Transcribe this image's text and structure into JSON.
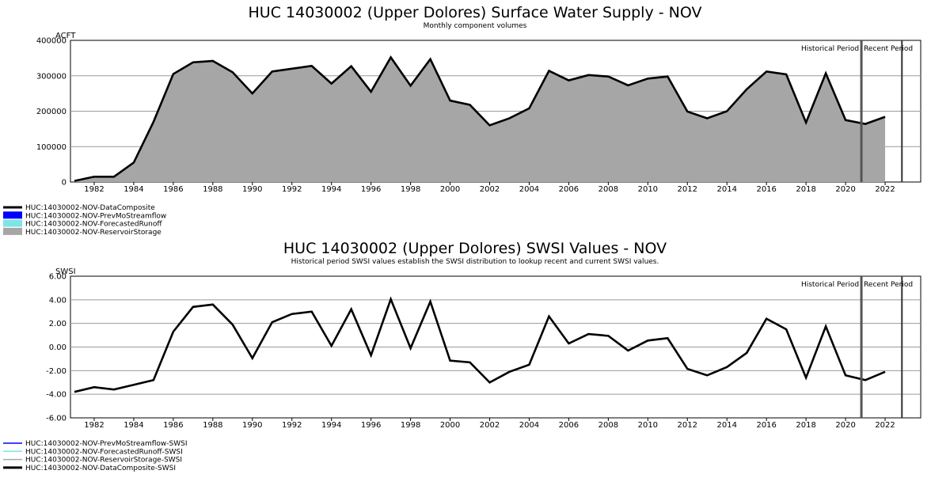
{
  "chart_data": [
    {
      "type": "area",
      "title": "HUC 14030002 (Upper Dolores) Surface Water Supply - NOV",
      "subtitle": "Monthly component volumes",
      "ylabel": "ACFT",
      "xlim": [
        1980.8,
        2023.8
      ],
      "ylim": [
        0,
        400000
      ],
      "yticks": [
        "0",
        "100000",
        "200000",
        "300000",
        "400000"
      ],
      "ytick_values": [
        0,
        100000,
        200000,
        300000,
        400000
      ],
      "xticks": [
        1982,
        1984,
        1986,
        1988,
        1990,
        1992,
        1994,
        1996,
        1998,
        2000,
        2002,
        2004,
        2006,
        2008,
        2010,
        2012,
        2014,
        2016,
        2018,
        2020,
        2022
      ],
      "grid": true,
      "x": [
        1981,
        1982,
        1983,
        1984,
        1985,
        1986,
        1987,
        1988,
        1989,
        1990,
        1991,
        1992,
        1993,
        1994,
        1995,
        1996,
        1997,
        1998,
        1999,
        2000,
        2001,
        2002,
        2003,
        2004,
        2005,
        2006,
        2007,
        2008,
        2009,
        2010,
        2011,
        2012,
        2013,
        2014,
        2015,
        2016,
        2017,
        2018,
        2019,
        2020,
        2021,
        2022
      ],
      "series": [
        {
          "name": "HUC:14030002-NOV-ReservoirStorage",
          "kind": "area",
          "color": "#a6a6a6",
          "values": [
            3000,
            15000,
            15000,
            55000,
            170000,
            305000,
            338000,
            342000,
            310000,
            250000,
            312000,
            320000,
            328000,
            278000,
            327000,
            255000,
            352000,
            272000,
            347000,
            230000,
            218000,
            160000,
            180000,
            208000,
            314000,
            287000,
            302000,
            298000,
            273000,
            292000,
            298000,
            199000,
            180000,
            200000,
            262000,
            312000,
            304000,
            168000,
            307000,
            175000,
            164000,
            184000
          ]
        },
        {
          "name": "HUC:14030002-NOV-DataComposite",
          "kind": "line",
          "color": "#000000",
          "values": [
            3000,
            15000,
            15000,
            55000,
            170000,
            305000,
            338000,
            342000,
            310000,
            250000,
            312000,
            320000,
            328000,
            278000,
            327000,
            255000,
            352000,
            272000,
            347000,
            230000,
            218000,
            160000,
            180000,
            208000,
            314000,
            287000,
            302000,
            298000,
            273000,
            292000,
            298000,
            199000,
            180000,
            200000,
            262000,
            312000,
            304000,
            168000,
            307000,
            175000,
            164000,
            184000
          ]
        }
      ],
      "period_lines": [
        2020.8,
        2022.85
      ],
      "period_labels": [
        "Historical Period",
        "Recent Period"
      ],
      "legend": [
        {
          "label": "HUC:14030002-NOV-DataComposite",
          "color": "#000000",
          "kind": "line"
        },
        {
          "label": "HUC:14030002-NOV-PrevMoStreamflow",
          "color": "#0000ff",
          "kind": "box"
        },
        {
          "label": "HUC:14030002-NOV-ForecastedRunoff",
          "color": "#7fe4e4",
          "kind": "box"
        },
        {
          "label": "HUC:14030002-NOV-ReservoirStorage",
          "color": "#a6a6a6",
          "kind": "box"
        }
      ]
    },
    {
      "type": "line",
      "title": "HUC 14030002 (Upper Dolores) SWSI Values - NOV",
      "subtitle": "Historical period SWSI values establish the SWSI distribution to lookup recent and current SWSI values.",
      "ylabel": "SWSI",
      "xlim": [
        1980.8,
        2023.8
      ],
      "ylim": [
        -6,
        6
      ],
      "yticks": [
        "-6.00",
        "-4.00",
        "-2.00",
        "0.00",
        "2.00",
        "4.00",
        "6.00"
      ],
      "ytick_values": [
        -6,
        -4,
        -2,
        0,
        2,
        4,
        6
      ],
      "xticks": [
        1982,
        1984,
        1986,
        1988,
        1990,
        1992,
        1994,
        1996,
        1998,
        2000,
        2002,
        2004,
        2006,
        2008,
        2010,
        2012,
        2014,
        2016,
        2018,
        2020,
        2022
      ],
      "grid": true,
      "x": [
        1981,
        1982,
        1983,
        1984,
        1985,
        1986,
        1987,
        1988,
        1989,
        1990,
        1991,
        1992,
        1993,
        1994,
        1995,
        1996,
        1997,
        1998,
        1999,
        2000,
        2001,
        2002,
        2003,
        2004,
        2005,
        2006,
        2007,
        2008,
        2009,
        2010,
        2011,
        2012,
        2013,
        2014,
        2015,
        2016,
        2017,
        2018,
        2019,
        2020,
        2021,
        2022
      ],
      "series": [
        {
          "name": "HUC:14030002-NOV-DataComposite-SWSI",
          "kind": "line",
          "color": "#000000",
          "values": [
            -3.8,
            -3.4,
            -3.6,
            -3.2,
            -2.8,
            1.3,
            3.4,
            3.6,
            1.9,
            -0.95,
            2.1,
            2.8,
            3.0,
            0.1,
            3.2,
            -0.7,
            4.05,
            -0.1,
            3.85,
            -1.15,
            -1.3,
            -3.0,
            -2.1,
            -1.5,
            2.6,
            0.3,
            1.1,
            0.95,
            -0.3,
            0.55,
            0.75,
            -1.85,
            -2.4,
            -1.7,
            -0.5,
            2.4,
            1.5,
            -2.6,
            1.75,
            -2.4,
            -2.8,
            -2.1
          ]
        }
      ],
      "period_lines": [
        2020.8,
        2022.85
      ],
      "period_labels": [
        "Historical Period",
        "Recent Period"
      ],
      "legend": [
        {
          "label": "HUC:14030002-NOV-PrevMoStreamflow-SWSI",
          "color": "#0000ff",
          "kind": "line"
        },
        {
          "label": "HUC:14030002-NOV-ForecastedRunoff-SWSI",
          "color": "#7fe4e4",
          "kind": "line"
        },
        {
          "label": "HUC:14030002-NOV-ReservoirStorage-SWSI",
          "color": "#a6a6a6",
          "kind": "line"
        },
        {
          "label": "HUC:14030002-NOV-DataComposite-SWSI",
          "color": "#000000",
          "kind": "thickline"
        }
      ]
    }
  ]
}
